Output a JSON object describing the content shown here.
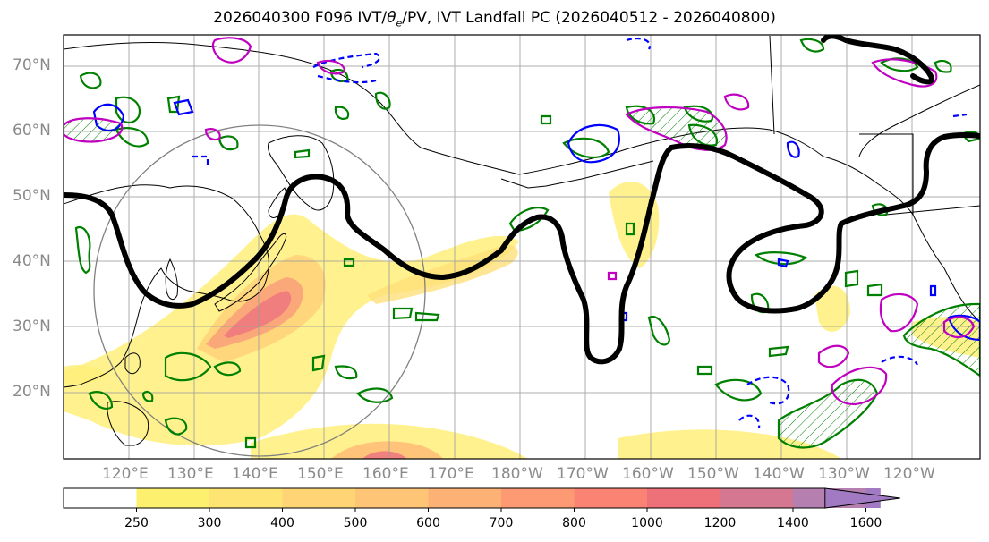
{
  "title": {
    "prefix": "2026040300 F096 IVT/",
    "theta": "θ",
    "theta_sub": "e",
    "suffix": "/PV, IVT Landfall PC (2026040512 - 2026040800)"
  },
  "lat_labels": [
    "70°N",
    "60°N",
    "50°N",
    "40°N",
    "30°N",
    "20°N"
  ],
  "lon_labels": [
    "120°E",
    "130°E",
    "140°E",
    "150°E",
    "160°E",
    "170°E",
    "180°W",
    "170°W",
    "160°W",
    "150°W",
    "140°W",
    "130°W",
    "120°W"
  ],
  "colorbar": {
    "ticks": [
      "250",
      "300",
      "400",
      "500",
      "600",
      "700",
      "800",
      "1000",
      "1200",
      "1400",
      "1600"
    ],
    "colors": [
      "#ffffff",
      "#fdf06e",
      "#fde473",
      "#fed475",
      "#fec577",
      "#fdb175",
      "#fd9a73",
      "#fa8373",
      "#ee7079",
      "#d57790",
      "#b580b0",
      "#a27ac3"
    ]
  },
  "colors": {
    "ivt_low": "#fff07a",
    "ivt_mid": "#ffb878",
    "ivt_high": "#f06d7a",
    "pv_jet": "#000000",
    "theta_e_positive": "#008000",
    "theta_e_negative": "#0000ff",
    "pv_anomaly": "#c000c0",
    "pc_circle": "#808080"
  }
}
